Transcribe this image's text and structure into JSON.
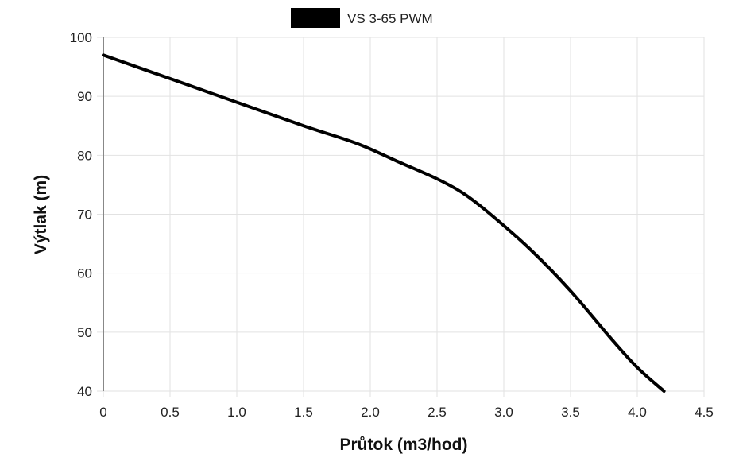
{
  "chart_data": {
    "type": "line",
    "title": "",
    "xlabel": "Průtok (m3/hod)",
    "ylabel": "Výtlak (m)",
    "xlim": [
      0,
      4.5
    ],
    "ylim": [
      40,
      100
    ],
    "x_ticks": [
      "0",
      "0.5",
      "1.0",
      "1.5",
      "2.0",
      "2.5",
      "3.0",
      "3.5",
      "4.0",
      "4.5"
    ],
    "y_ticks": [
      "40",
      "50",
      "60",
      "70",
      "80",
      "90",
      "100"
    ],
    "grid": true,
    "legend_position": "top-center",
    "series": [
      {
        "name": "VS 3-65 PWM",
        "color": "#000000",
        "x": [
          0,
          0.5,
          1.0,
          1.5,
          1.9,
          2.2,
          2.5,
          2.7,
          2.9,
          3.2,
          3.5,
          3.8,
          4.0,
          4.2
        ],
        "y": [
          97,
          93,
          89,
          85,
          82,
          79,
          76,
          73.5,
          70,
          64,
          57,
          49,
          44,
          40
        ]
      }
    ]
  }
}
